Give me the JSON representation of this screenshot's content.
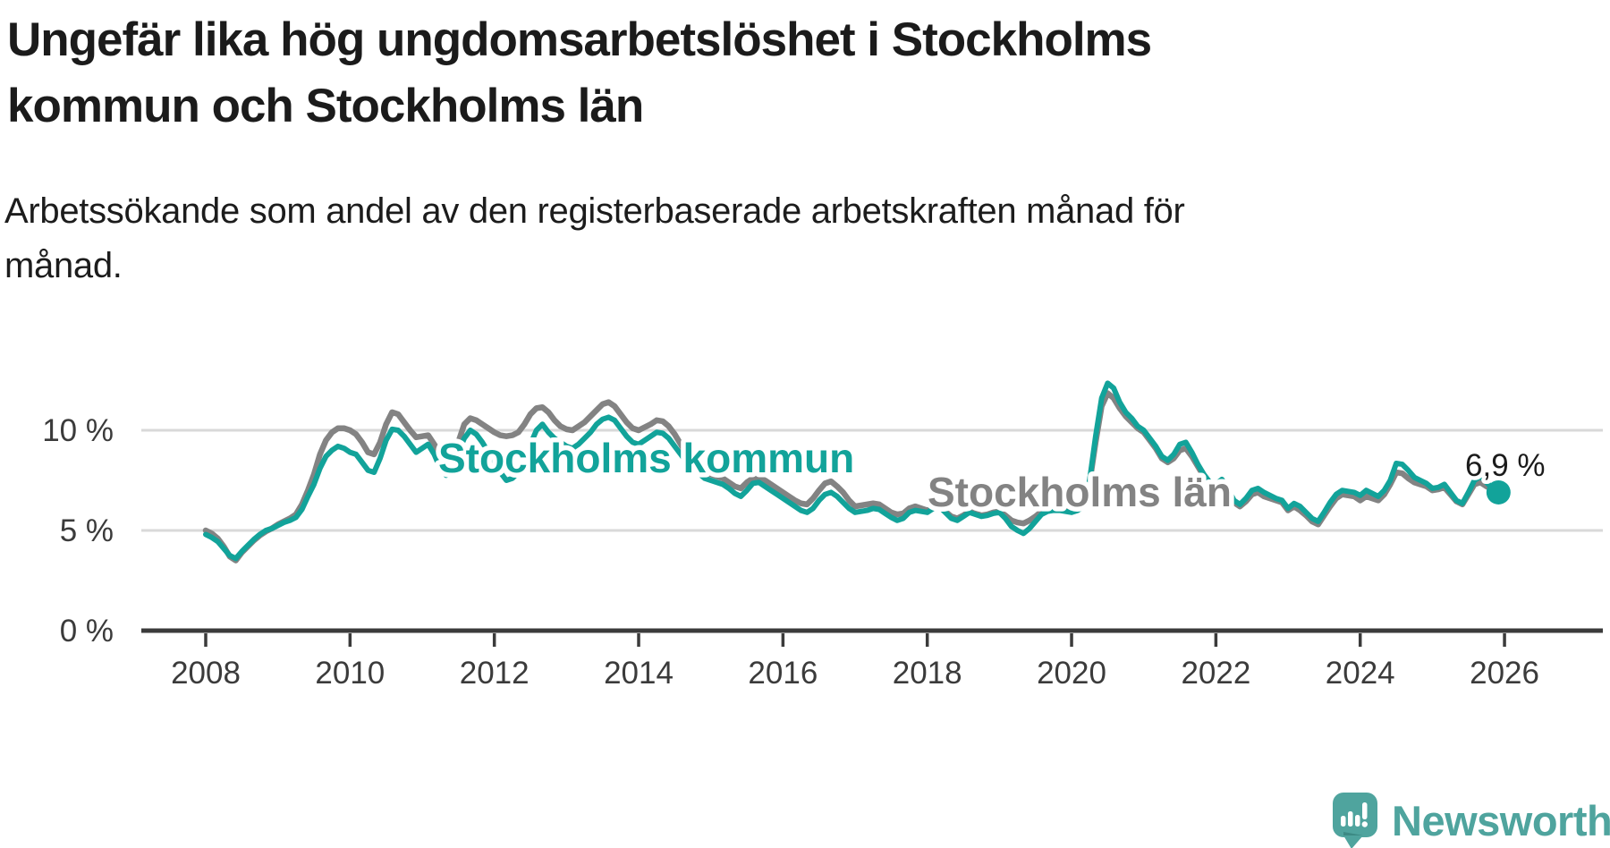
{
  "header": {
    "title_line1": "Ungefär lika hög ungdomsarbetslöshet i Stockholms",
    "title_line2": "kommun och Stockholms län",
    "subtitle_line1": "Arbetssökande som andel av den registerbaserade arbetskraften månad för",
    "subtitle_line2": "månad."
  },
  "footer": {
    "brand": "Newsworthy",
    "logo_icon": "newsworthy-chart-bubble-icon",
    "brand_color": "#4FA49E"
  },
  "chart_data": {
    "type": "line",
    "title": "Ungefär lika hög ungdomsarbetslöshet i Stockholms kommun och Stockholms län",
    "subtitle": "Arbetssökande som andel av den registerbaserade arbetskraften månad för månad.",
    "x_start_year": 2008,
    "points_per_year": 12,
    "x_axis": {
      "tick_years": [
        2008,
        2010,
        2012,
        2014,
        2016,
        2018,
        2020,
        2022,
        2024,
        2026
      ]
    },
    "y_axis": {
      "tick_values": [
        0,
        5,
        10
      ],
      "tick_suffix": " %",
      "range": [
        0,
        12.8
      ],
      "gridlines": [
        5,
        10
      ]
    },
    "grid_color": "#d9d9d9",
    "axis_color": "#3b3b3b",
    "legend_position": "inline-labels",
    "end_annotation": {
      "text": "6,9 %",
      "series": "Stockholms kommun",
      "value": 6.9
    },
    "series": [
      {
        "name": "Stockholms kommun",
        "color": "#12a39a",
        "values": [
          4.8,
          4.65,
          4.45,
          4.1,
          3.75,
          3.6,
          3.95,
          4.25,
          4.55,
          4.8,
          5.0,
          5.1,
          5.25,
          5.4,
          5.5,
          5.65,
          6.05,
          6.7,
          7.3,
          8.1,
          8.7,
          9.0,
          9.2,
          9.1,
          8.9,
          8.8,
          8.4,
          8.0,
          7.9,
          8.6,
          9.5,
          10.05,
          10.0,
          9.7,
          9.3,
          8.9,
          9.1,
          9.3,
          8.8,
          8.1,
          7.75,
          8.1,
          8.9,
          9.6,
          10.0,
          9.8,
          9.4,
          8.9,
          8.4,
          7.9,
          7.5,
          7.6,
          7.9,
          8.4,
          9.3,
          10.0,
          10.3,
          9.9,
          9.6,
          9.4,
          9.2,
          9.1,
          9.3,
          9.6,
          9.9,
          10.3,
          10.55,
          10.65,
          10.5,
          10.1,
          9.7,
          9.4,
          9.3,
          9.5,
          9.7,
          9.9,
          9.85,
          9.6,
          9.2,
          8.8,
          8.4,
          8.1,
          7.85,
          7.6,
          7.5,
          7.4,
          7.3,
          7.1,
          6.85,
          6.7,
          7.0,
          7.35,
          7.4,
          7.2,
          7.0,
          6.8,
          6.6,
          6.4,
          6.2,
          6.0,
          5.9,
          6.1,
          6.5,
          6.8,
          6.9,
          6.7,
          6.4,
          6.1,
          5.9,
          5.95,
          6.0,
          6.1,
          6.05,
          5.85,
          5.65,
          5.5,
          5.6,
          5.9,
          6.0,
          5.95,
          5.9,
          6.1,
          6.2,
          5.9,
          5.6,
          5.5,
          5.7,
          5.9,
          5.8,
          5.7,
          5.75,
          5.85,
          5.9,
          5.6,
          5.2,
          5.0,
          4.85,
          5.1,
          5.45,
          5.8,
          5.95,
          6.0,
          6.0,
          5.95,
          5.9,
          6.0,
          6.2,
          7.5,
          9.7,
          11.6,
          12.35,
          12.1,
          11.4,
          10.9,
          10.6,
          10.2,
          10.0,
          9.6,
          9.2,
          8.7,
          8.5,
          8.8,
          9.3,
          9.4,
          8.9,
          8.3,
          7.8,
          7.4,
          7.3,
          7.55,
          7.1,
          6.5,
          6.3,
          6.6,
          7.0,
          7.1,
          6.9,
          6.75,
          6.6,
          6.5,
          6.1,
          6.35,
          6.2,
          5.9,
          5.6,
          5.45,
          5.9,
          6.4,
          6.8,
          7.0,
          6.95,
          6.9,
          6.75,
          7.0,
          6.85,
          6.7,
          7.0,
          7.5,
          8.35,
          8.3,
          8.0,
          7.65,
          7.5,
          7.35,
          7.1,
          7.15,
          7.3,
          6.9,
          6.5,
          6.35,
          6.9,
          7.5,
          7.7,
          7.4,
          7.1,
          6.9
        ]
      },
      {
        "name": "Stockholms län",
        "color": "#838383",
        "values": [
          5.0,
          4.85,
          4.6,
          4.2,
          3.7,
          3.5,
          3.9,
          4.2,
          4.5,
          4.75,
          4.95,
          5.1,
          5.3,
          5.45,
          5.6,
          5.8,
          6.3,
          7.0,
          7.8,
          8.8,
          9.5,
          9.9,
          10.1,
          10.1,
          10.0,
          9.8,
          9.4,
          8.9,
          8.8,
          9.4,
          10.3,
          10.9,
          10.8,
          10.4,
          10.0,
          9.65,
          9.7,
          9.75,
          9.3,
          8.8,
          8.6,
          8.65,
          9.4,
          10.3,
          10.6,
          10.5,
          10.3,
          10.1,
          9.9,
          9.75,
          9.7,
          9.75,
          9.9,
          10.3,
          10.8,
          11.1,
          11.15,
          10.9,
          10.5,
          10.2,
          10.05,
          10.0,
          10.2,
          10.4,
          10.7,
          11.0,
          11.3,
          11.4,
          11.2,
          10.8,
          10.4,
          10.1,
          10.0,
          10.15,
          10.3,
          10.5,
          10.45,
          10.2,
          9.8,
          9.3,
          8.8,
          8.4,
          8.1,
          7.9,
          7.8,
          7.7,
          7.6,
          7.4,
          7.2,
          7.1,
          7.4,
          7.6,
          7.65,
          7.5,
          7.3,
          7.1,
          6.9,
          6.7,
          6.5,
          6.35,
          6.3,
          6.6,
          7.0,
          7.35,
          7.45,
          7.2,
          6.9,
          6.5,
          6.2,
          6.25,
          6.3,
          6.35,
          6.3,
          6.1,
          5.9,
          5.8,
          5.85,
          6.1,
          6.2,
          6.1,
          6.0,
          6.15,
          6.2,
          5.95,
          5.7,
          5.6,
          5.75,
          5.95,
          5.85,
          5.75,
          5.8,
          5.9,
          5.95,
          5.75,
          5.5,
          5.4,
          5.35,
          5.5,
          5.7,
          5.95,
          6.05,
          6.1,
          6.1,
          6.05,
          6.0,
          6.1,
          6.3,
          7.4,
          9.4,
          11.2,
          11.85,
          11.6,
          11.1,
          10.7,
          10.4,
          10.1,
          9.9,
          9.5,
          9.1,
          8.6,
          8.4,
          8.6,
          9.0,
          9.1,
          8.7,
          8.2,
          7.7,
          7.3,
          7.2,
          7.4,
          6.9,
          6.4,
          6.2,
          6.45,
          6.8,
          6.9,
          6.7,
          6.6,
          6.5,
          6.4,
          6.0,
          6.2,
          6.0,
          5.75,
          5.45,
          5.3,
          5.75,
          6.2,
          6.6,
          6.8,
          6.75,
          6.7,
          6.5,
          6.7,
          6.6,
          6.5,
          6.8,
          7.3,
          7.9,
          7.85,
          7.6,
          7.4,
          7.3,
          7.2,
          7.0,
          7.05,
          7.15,
          6.8,
          6.45,
          6.3,
          6.8,
          7.3,
          7.4,
          7.2,
          7.05,
          7.0
        ]
      }
    ]
  }
}
